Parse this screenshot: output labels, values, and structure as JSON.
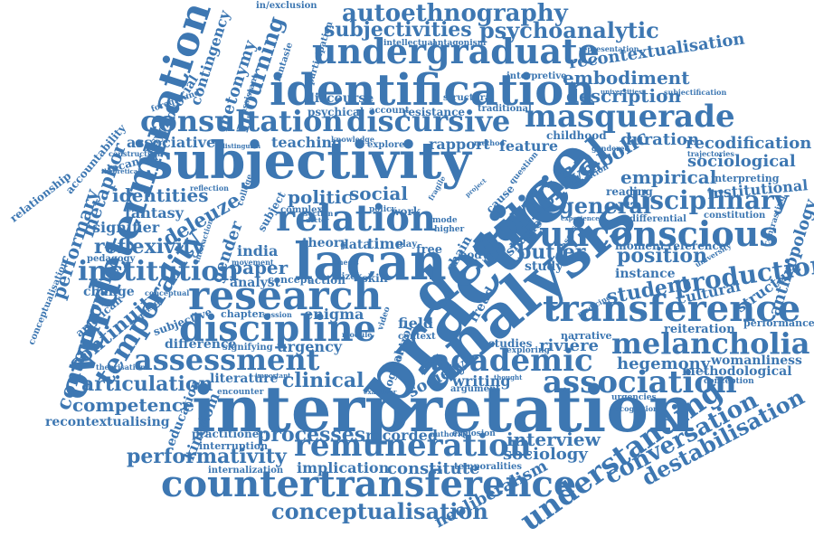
{
  "cloud": {
    "color": "#3d77b2",
    "words": [
      {
        "key": "interpretation",
        "text": "interpretation"
      },
      {
        "key": "practice",
        "text": "practice"
      },
      {
        "key": "analysis",
        "text": "analysis"
      },
      {
        "key": "subjectivity",
        "text": "subjectivity"
      },
      {
        "key": "desire",
        "text": "desire"
      },
      {
        "key": "identification",
        "text": "identification"
      },
      {
        "key": "lacan",
        "text": "lacan"
      },
      {
        "key": "overdetermination",
        "text": "overdetermination"
      },
      {
        "key": "countertransference",
        "text": "countertransference"
      },
      {
        "key": "research",
        "text": "research"
      },
      {
        "key": "discipline",
        "text": "discipline"
      },
      {
        "key": "transference",
        "text": "transference"
      },
      {
        "key": "unconscious",
        "text": "unconscious"
      },
      {
        "key": "consultation",
        "text": "consultation"
      },
      {
        "key": "discursive",
        "text": "discursive"
      },
      {
        "key": "masquerade",
        "text": "masquerade"
      },
      {
        "key": "remuneration",
        "text": "remuneration"
      },
      {
        "key": "undergraduate",
        "text": "undergraduate"
      },
      {
        "key": "relation",
        "text": "relation"
      },
      {
        "key": "political",
        "text": "political"
      },
      {
        "key": "understanding",
        "text": "understanding"
      },
      {
        "key": "assessment",
        "text": "assessment"
      },
      {
        "key": "melancholia",
        "text": "melancholia"
      },
      {
        "key": "association",
        "text": "association"
      },
      {
        "key": "academic",
        "text": "academic"
      },
      {
        "key": "institution",
        "text": "institution"
      },
      {
        "key": "temporality",
        "text": "temporality"
      },
      {
        "key": "autoethnography",
        "text": "autoethnography"
      },
      {
        "key": "psychoanalytic",
        "text": "psychoanalytic"
      },
      {
        "key": "subjectivities",
        "text": "subjectivities"
      },
      {
        "key": "conceptualisation",
        "text": "conceptualisation"
      },
      {
        "key": "production",
        "text": "production"
      },
      {
        "key": "disciplinary",
        "text": "disciplinary"
      },
      {
        "key": "conversation",
        "text": "conversation"
      },
      {
        "key": "destabilisation",
        "text": "destabilisation"
      },
      {
        "key": "performativity",
        "text": "performativity"
      },
      {
        "key": "mourning",
        "text": "mourning"
      },
      {
        "key": "contemporary",
        "text": "contemporary"
      },
      {
        "key": "performary",
        "text": "performary"
      },
      {
        "key": "reflexivity",
        "text": "reflexivity"
      },
      {
        "key": "deleuze",
        "text": "deleuze"
      },
      {
        "key": "metaphor",
        "text": "metaphor"
      },
      {
        "key": "continuity",
        "text": "continuity"
      },
      {
        "key": "articulation",
        "text": "articulation"
      },
      {
        "key": "competence",
        "text": "competence"
      },
      {
        "key": "recontextualising",
        "text": "recontextualising"
      },
      {
        "key": "recontextualisation",
        "text": "recontextualisation"
      },
      {
        "key": "embodiment",
        "text": "embodiment"
      },
      {
        "key": "description",
        "text": "description"
      },
      {
        "key": "recodification",
        "text": "recodification"
      },
      {
        "key": "sociological",
        "text": "sociological"
      },
      {
        "key": "institutional",
        "text": "institutional"
      },
      {
        "key": "anthropology",
        "text": "anthropology"
      },
      {
        "key": "symbolic",
        "text": "symbolic"
      },
      {
        "key": "empirical",
        "text": "empirical"
      },
      {
        "key": "duration",
        "text": "duration"
      },
      {
        "key": "general",
        "text": "general"
      },
      {
        "key": "position",
        "text": "position"
      },
      {
        "key": "student",
        "text": "student"
      },
      {
        "key": "structure",
        "text": "structure"
      },
      {
        "key": "cultural",
        "text": "cultural"
      },
      {
        "key": "hegemony",
        "text": "hegemony"
      },
      {
        "key": "womanliness",
        "text": "womanliness"
      },
      {
        "key": "methodological",
        "text": "methodological"
      },
      {
        "key": "interview",
        "text": "interview"
      },
      {
        "key": "sociology",
        "text": "sociology"
      },
      {
        "key": "neoliberalism",
        "text": "neoliberalism"
      },
      {
        "key": "constitute",
        "text": "constitute"
      },
      {
        "key": "implication",
        "text": "implication"
      },
      {
        "key": "processes",
        "text": "processes"
      },
      {
        "key": "recorded",
        "text": "recorded"
      },
      {
        "key": "practitioner",
        "text": "practitioner"
      },
      {
        "key": "interruption",
        "text": "interruption"
      },
      {
        "key": "internalization",
        "text": "internalization"
      },
      {
        "key": "kingdom",
        "text": "kingdom"
      },
      {
        "key": "education",
        "text": "education"
      },
      {
        "key": "literature",
        "text": "literature"
      },
      {
        "key": "clinical",
        "text": "clinical"
      },
      {
        "key": "difference",
        "text": "difference"
      },
      {
        "key": "signifying",
        "text": "signifying"
      },
      {
        "key": "urgency",
        "text": "urgency"
      },
      {
        "key": "enigma",
        "text": "enigma"
      },
      {
        "key": "analyst",
        "text": "analyst"
      },
      {
        "key": "paper",
        "text": "paper"
      },
      {
        "key": "india",
        "text": "india"
      },
      {
        "key": "gender",
        "text": "gender"
      },
      {
        "key": "identities",
        "text": "identities"
      },
      {
        "key": "fantasy",
        "text": "fantasy"
      },
      {
        "key": "signifier",
        "text": "signifier"
      },
      {
        "key": "pedagogy",
        "text": "pedagogy"
      },
      {
        "key": "associative",
        "text": "associative"
      },
      {
        "key": "lacanian",
        "text": "lacanian"
      },
      {
        "key": "politic",
        "text": "politic"
      },
      {
        "key": "social",
        "text": "social"
      },
      {
        "key": "butler",
        "text": "butler"
      },
      {
        "key": "study",
        "text": "study"
      },
      {
        "key": "field",
        "text": "field"
      },
      {
        "key": "context",
        "text": "context"
      },
      {
        "key": "society",
        "text": "society"
      },
      {
        "key": "writing",
        "text": "writing"
      },
      {
        "key": "argument",
        "text": "argument"
      },
      {
        "key": "riviere",
        "text": "rivière"
      },
      {
        "key": "narrative",
        "text": "narrative"
      },
      {
        "key": "reiteration",
        "text": "reiteration"
      },
      {
        "key": "performance",
        "text": "performance"
      },
      {
        "key": "feature",
        "text": "feature"
      },
      {
        "key": "rapport",
        "text": "rapport"
      },
      {
        "key": "teaching",
        "text": "teaching"
      },
      {
        "key": "instance",
        "text": "instance"
      },
      {
        "key": "reference",
        "text": "reference"
      },
      {
        "key": "moment",
        "text": "moment"
      },
      {
        "key": "reading",
        "text": "reading"
      },
      {
        "key": "constitution",
        "text": "constitution"
      },
      {
        "key": "differential",
        "text": "differential"
      },
      {
        "key": "childhood",
        "text": "childhood"
      },
      {
        "key": "resistance",
        "text": "resistance"
      },
      {
        "key": "traditional",
        "text": "traditional"
      },
      {
        "key": "discourse",
        "text": "discourse"
      },
      {
        "key": "interpretive",
        "text": "interpretive"
      },
      {
        "key": "structural",
        "text": "structural"
      },
      {
        "key": "psychical",
        "text": "psychical"
      },
      {
        "key": "account",
        "text": "account"
      },
      {
        "key": "psychosocial",
        "text": "psychosocial"
      },
      {
        "key": "contingency",
        "text": "contingency"
      },
      {
        "key": "metonymy",
        "text": "metonymy"
      },
      {
        "key": "accountability",
        "text": "accountability"
      },
      {
        "key": "relationship",
        "text": "relationship"
      },
      {
        "key": "conceptualisation2",
        "text": "conceptualisation"
      },
      {
        "key": "american",
        "text": "american"
      },
      {
        "key": "change",
        "text": "change"
      },
      {
        "key": "subjective",
        "text": "subjective"
      },
      {
        "key": "theory",
        "text": "theory"
      },
      {
        "key": "data",
        "text": "data"
      },
      {
        "key": "time",
        "text": "time"
      },
      {
        "key": "action",
        "text": "action"
      },
      {
        "key": "concept",
        "text": "concept"
      },
      {
        "key": "chapter",
        "text": "chapter"
      },
      {
        "key": "body",
        "text": "body"
      },
      {
        "key": "freud",
        "text": "freud"
      },
      {
        "key": "logical",
        "text": "logical"
      },
      {
        "key": "control",
        "text": "control"
      },
      {
        "key": "studies",
        "text": "studies"
      },
      {
        "key": "shame",
        "text": "shame"
      },
      {
        "key": "cause",
        "text": "cause"
      },
      {
        "key": "chain",
        "text": "chain"
      },
      {
        "key": "free",
        "text": "free"
      },
      {
        "key": "fragile",
        "text": "fragile"
      },
      {
        "key": "in_exclusion",
        "text": "in/exclusion"
      },
      {
        "key": "participation",
        "text": "participation"
      },
      {
        "key": "fantasie",
        "text": "fantasie"
      },
      {
        "key": "intellectual",
        "text": "intellectual"
      },
      {
        "key": "antagonism",
        "text": "antagonism"
      },
      {
        "key": "representation",
        "text": "representation"
      },
      {
        "key": "subjectification",
        "text": "subjectification"
      },
      {
        "key": "universities",
        "text": "universities"
      },
      {
        "key": "explore",
        "text": "explore"
      },
      {
        "key": "knowledge",
        "text": "knowledge"
      },
      {
        "key": "method",
        "text": "method"
      },
      {
        "key": "work",
        "text": "work"
      },
      {
        "key": "policy",
        "text": "policy"
      },
      {
        "key": "complex",
        "text": "complex"
      },
      {
        "key": "zizek",
        "text": "zizek"
      },
      {
        "key": "skill",
        "text": "skill"
      },
      {
        "key": "gendered",
        "text": "gendered"
      },
      {
        "key": "trajectories",
        "text": "trajectories"
      },
      {
        "key": "interpreting",
        "text": "interpreting"
      },
      {
        "key": "condition",
        "text": "condition"
      },
      {
        "key": "experience",
        "text": "experience"
      },
      {
        "key": "exploring",
        "text": "exploring"
      },
      {
        "key": "urgencies",
        "text": "urgencies"
      },
      {
        "key": "recognition",
        "text": "recognition"
      },
      {
        "key": "conception",
        "text": "conception"
      },
      {
        "key": "contrasting",
        "text": "contrasting"
      },
      {
        "key": "theorisation",
        "text": "theorisation"
      },
      {
        "key": "encounter",
        "text": "encounter"
      },
      {
        "key": "important",
        "text": "important"
      },
      {
        "key": "examiner",
        "text": "examiner"
      },
      {
        "key": "thought",
        "text": "thought"
      },
      {
        "key": "explosion",
        "text": "explosion"
      },
      {
        "key": "authority",
        "text": "authority"
      },
      {
        "key": "temporalities",
        "text": "temporalities"
      },
      {
        "key": "doctor",
        "text": "doctor"
      },
      {
        "key": "section",
        "text": "section"
      },
      {
        "key": "foreground",
        "text": "foreground"
      },
      {
        "key": "construction",
        "text": "construction"
      },
      {
        "key": "theoretical",
        "text": "theoretical"
      },
      {
        "key": "reflection",
        "text": "reflection"
      },
      {
        "key": "distinguish",
        "text": "distinguish"
      },
      {
        "key": "assistant",
        "text": "assistant"
      },
      {
        "key": "interaction",
        "text": "interaction"
      },
      {
        "key": "movement",
        "text": "movement"
      },
      {
        "key": "conceptual",
        "text": "conceptual"
      },
      {
        "key": "surprising",
        "text": "surprising"
      },
      {
        "key": "session",
        "text": "session"
      },
      {
        "key": "college",
        "text": "college"
      },
      {
        "key": "higher",
        "text": "higher"
      },
      {
        "key": "mode",
        "text": "mode"
      },
      {
        "key": "play",
        "text": "play"
      },
      {
        "key": "thesis",
        "text": "thesis"
      },
      {
        "key": "module",
        "text": "module"
      },
      {
        "key": "video",
        "text": "video"
      },
      {
        "key": "medicine",
        "text": "medicine"
      },
      {
        "key": "classes",
        "text": "classes"
      },
      {
        "key": "question",
        "text": "question"
      },
      {
        "key": "university",
        "text": "university"
      },
      {
        "key": "project",
        "text": "project"
      },
      {
        "key": "subject",
        "text": "subject"
      }
    ]
  }
}
